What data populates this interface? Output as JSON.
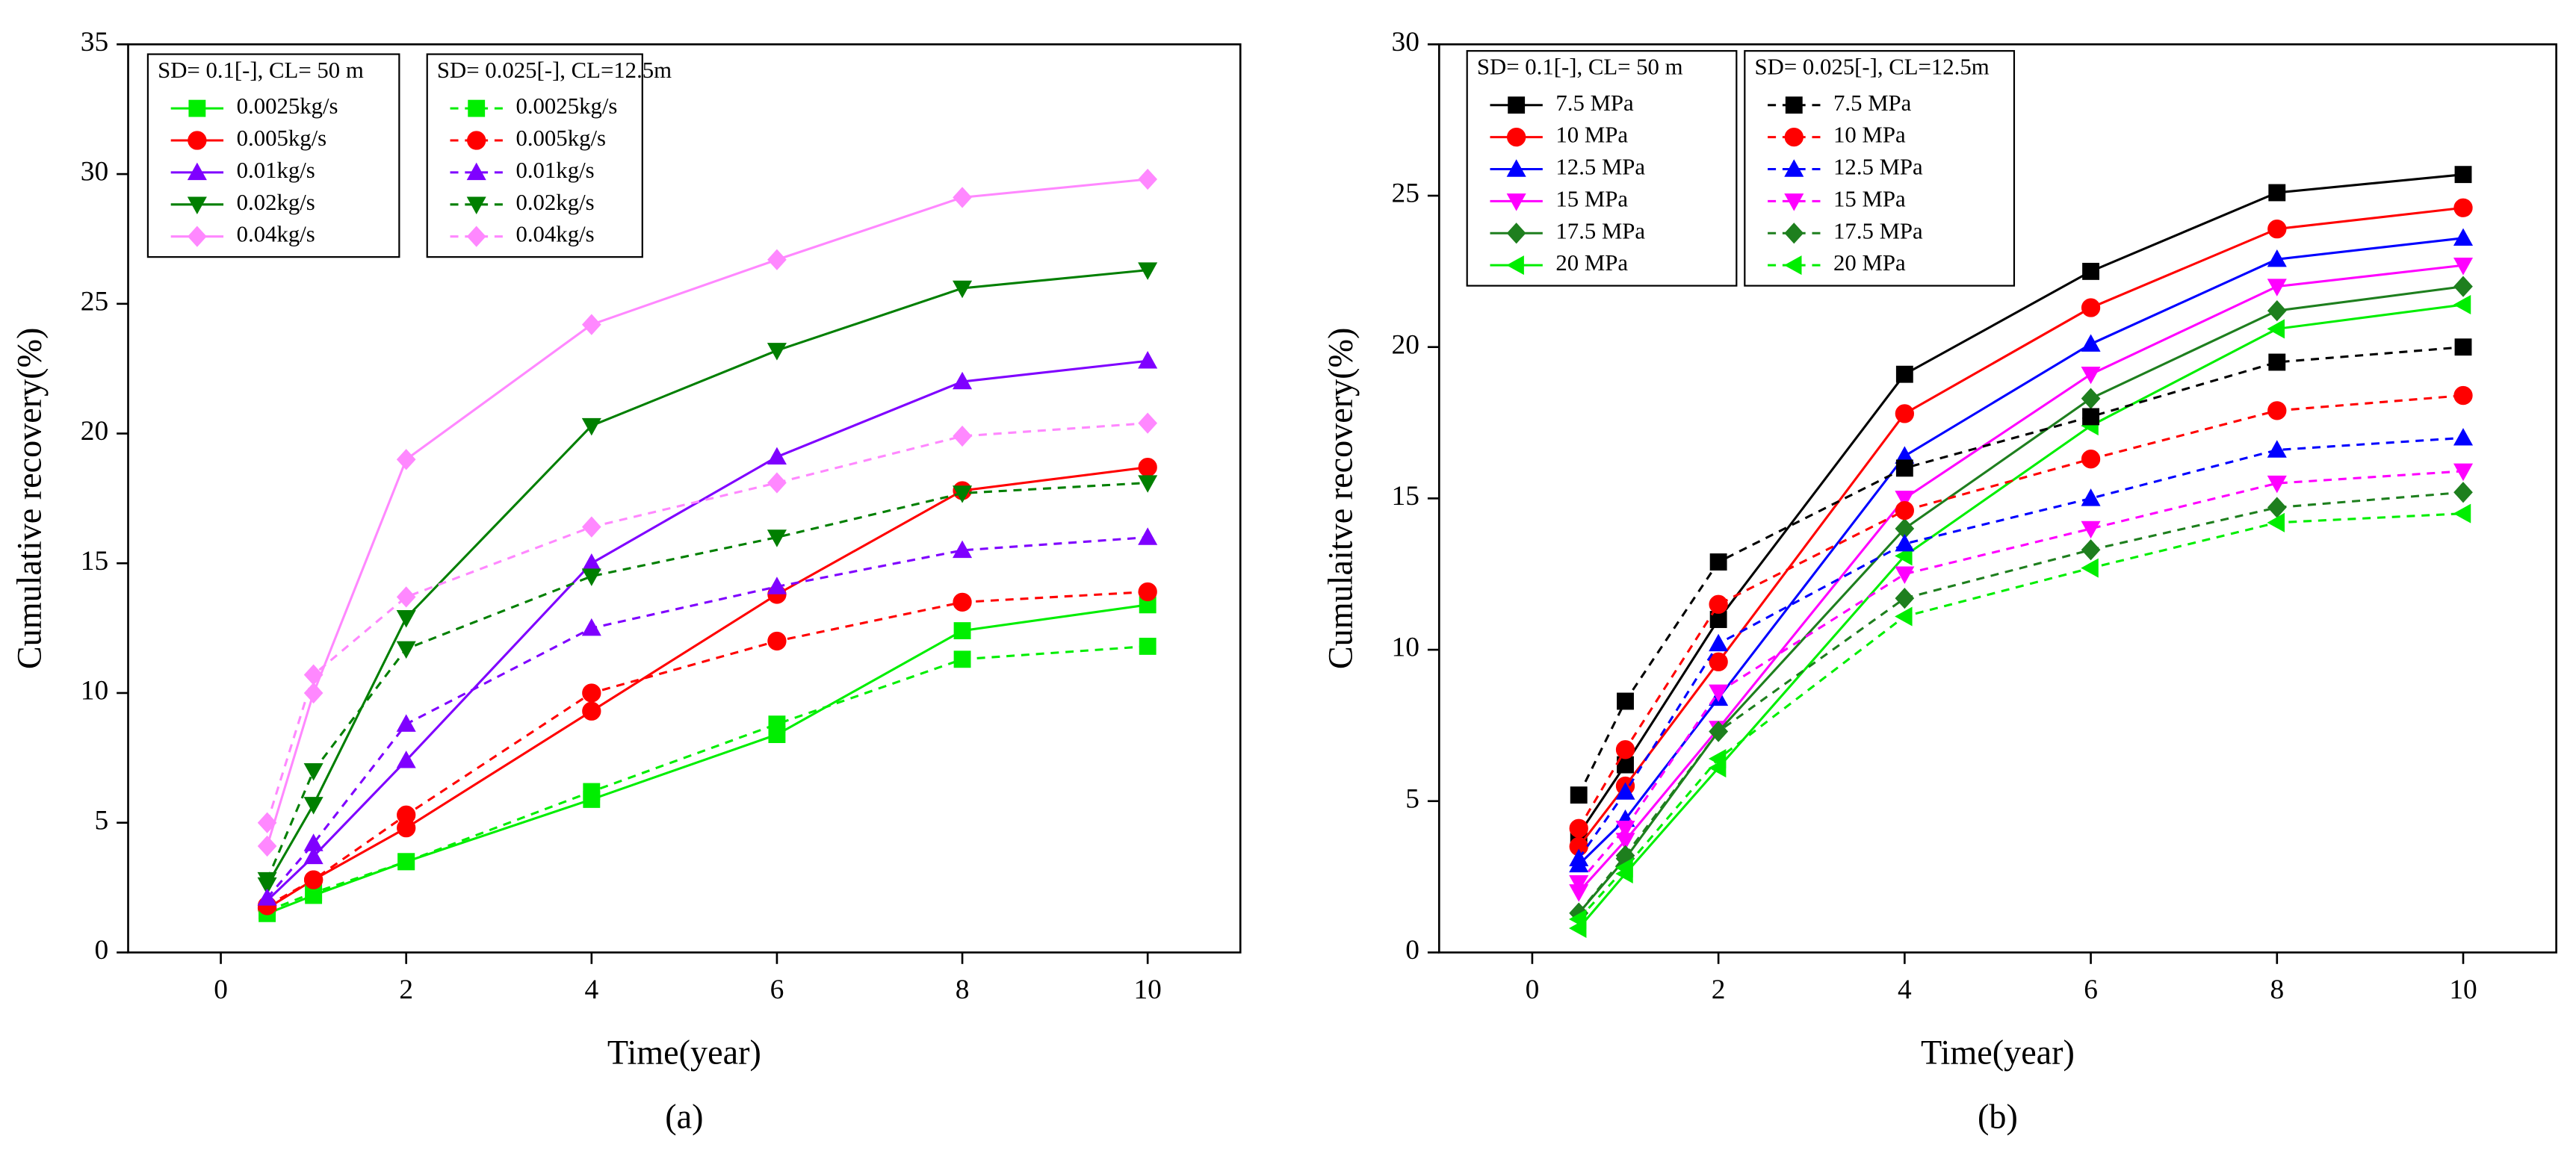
{
  "chart_data": [
    {
      "type": "line",
      "label": "(a)",
      "xlabel": "Time(year)",
      "ylabel": "Cumulative recovery(%)",
      "x": [
        0.5,
        1,
        2,
        4,
        6,
        8,
        10
      ],
      "xlim": [
        -1,
        11
      ],
      "xticks": [
        0,
        2,
        4,
        6,
        8,
        10
      ],
      "ylim": [
        0,
        35
      ],
      "yticks": [
        0,
        5,
        10,
        15,
        20,
        25,
        30,
        35
      ],
      "legend_groups": [
        "SD= 0.1[-], CL= 50 m",
        "SD= 0.025[-], CL=12.5m"
      ],
      "series": [
        {
          "name": "0.0025kg/s",
          "color": "#00ee00",
          "marker": "square",
          "dashed": false,
          "values": [
            1.5,
            2.2,
            3.5,
            5.9,
            8.4,
            12.4,
            13.4
          ]
        },
        {
          "name": "0.005kg/s",
          "color": "#ff0000",
          "marker": "circle",
          "dashed": false,
          "values": [
            1.7,
            2.8,
            4.8,
            9.3,
            13.8,
            17.8,
            18.7
          ]
        },
        {
          "name": "0.01kg/s",
          "color": "#7f00ff",
          "marker": "up",
          "dashed": false,
          "values": [
            2.0,
            3.7,
            7.4,
            15.0,
            19.1,
            22.0,
            22.8
          ]
        },
        {
          "name": "0.02kg/s",
          "color": "#007f00",
          "marker": "down",
          "dashed": false,
          "values": [
            2.6,
            5.7,
            12.9,
            20.3,
            23.2,
            25.6,
            26.3
          ]
        },
        {
          "name": "0.04kg/s",
          "color": "#ff88ff",
          "marker": "diamond",
          "dashed": false,
          "values": [
            4.1,
            10.0,
            19.0,
            24.2,
            26.7,
            29.1,
            29.8
          ]
        },
        {
          "name": "0.0025kg/s",
          "color": "#00ee00",
          "marker": "square",
          "dashed": true,
          "values": [
            1.6,
            2.3,
            3.5,
            6.2,
            8.8,
            11.3,
            11.8
          ]
        },
        {
          "name": "0.005kg/s",
          "color": "#ff0000",
          "marker": "circle",
          "dashed": true,
          "values": [
            1.8,
            2.8,
            5.3,
            10.0,
            12.0,
            13.5,
            13.9
          ]
        },
        {
          "name": "0.01kg/s",
          "color": "#7f00ff",
          "marker": "up",
          "dashed": true,
          "values": [
            2.1,
            4.2,
            8.8,
            12.5,
            14.1,
            15.5,
            16.0
          ]
        },
        {
          "name": "0.02kg/s",
          "color": "#007f00",
          "marker": "down",
          "dashed": true,
          "values": [
            2.8,
            7.0,
            11.7,
            14.5,
            16.0,
            17.7,
            18.1
          ]
        },
        {
          "name": "0.04kg/s",
          "color": "#ff88ff",
          "marker": "diamond",
          "dashed": true,
          "values": [
            5.0,
            10.7,
            13.7,
            16.4,
            18.1,
            19.9,
            20.4
          ]
        }
      ]
    },
    {
      "type": "line",
      "label": "(b)",
      "xlabel": "Time(year)",
      "ylabel": "Cumulaitve recovery(%)",
      "x": [
        0.5,
        1,
        2,
        4,
        6,
        8,
        10
      ],
      "xlim": [
        -1,
        11
      ],
      "xticks": [
        0,
        2,
        4,
        6,
        8,
        10
      ],
      "ylim": [
        0,
        30
      ],
      "yticks": [
        0,
        5,
        10,
        15,
        20,
        25,
        30
      ],
      "legend_groups": [
        "SD= 0.1[-], CL= 50 m",
        "SD= 0.025[-], CL=12.5m"
      ],
      "series": [
        {
          "name": "7.5 MPa",
          "color": "#000000",
          "marker": "square",
          "dashed": false,
          "values": [
            3.9,
            6.2,
            11.0,
            19.1,
            22.5,
            25.1,
            25.7
          ]
        },
        {
          "name": "10 MPa",
          "color": "#ff0000",
          "marker": "circle",
          "dashed": false,
          "values": [
            3.5,
            5.5,
            9.6,
            17.8,
            21.3,
            23.9,
            24.6
          ]
        },
        {
          "name": "12.5 MPa",
          "color": "#0000ff",
          "marker": "up",
          "dashed": false,
          "values": [
            2.9,
            4.4,
            8.4,
            16.4,
            20.1,
            22.9,
            23.6
          ]
        },
        {
          "name": "15 MPa",
          "color": "#ff00ff",
          "marker": "down",
          "dashed": false,
          "values": [
            2.0,
            3.7,
            7.4,
            15.0,
            19.1,
            22.0,
            22.7
          ]
        },
        {
          "name": "17.5 MPa",
          "color": "#1e7f1e",
          "marker": "diamond",
          "dashed": false,
          "values": [
            1.3,
            3.1,
            7.3,
            14.0,
            18.3,
            21.2,
            22.0
          ]
        },
        {
          "name": "20 MPa",
          "color": "#00ee00",
          "marker": "left",
          "dashed": false,
          "values": [
            0.8,
            2.6,
            6.1,
            13.1,
            17.4,
            20.6,
            21.4
          ]
        },
        {
          "name": "7.5 MPa",
          "color": "#000000",
          "marker": "square",
          "dashed": true,
          "values": [
            5.2,
            8.3,
            12.9,
            16.0,
            17.7,
            19.5,
            20.0
          ]
        },
        {
          "name": "10 MPa",
          "color": "#ff0000",
          "marker": "circle",
          "dashed": true,
          "values": [
            4.1,
            6.7,
            11.5,
            14.6,
            16.3,
            17.9,
            18.4
          ]
        },
        {
          "name": "12.5 MPa",
          "color": "#0000ff",
          "marker": "up",
          "dashed": true,
          "values": [
            3.1,
            5.3,
            10.2,
            13.5,
            15.0,
            16.6,
            17.0
          ]
        },
        {
          "name": "15 MPa",
          "color": "#ff00ff",
          "marker": "down",
          "dashed": true,
          "values": [
            2.3,
            4.1,
            8.6,
            12.5,
            14.0,
            15.5,
            15.9
          ]
        },
        {
          "name": "17.5 MPa",
          "color": "#1e7f1e",
          "marker": "diamond",
          "dashed": true,
          "values": [
            1.3,
            3.2,
            7.3,
            11.7,
            13.3,
            14.7,
            15.2
          ]
        },
        {
          "name": "20 MPa",
          "color": "#00ee00",
          "marker": "left",
          "dashed": true,
          "values": [
            1.1,
            2.8,
            6.4,
            11.1,
            12.7,
            14.2,
            14.5
          ]
        }
      ]
    }
  ]
}
